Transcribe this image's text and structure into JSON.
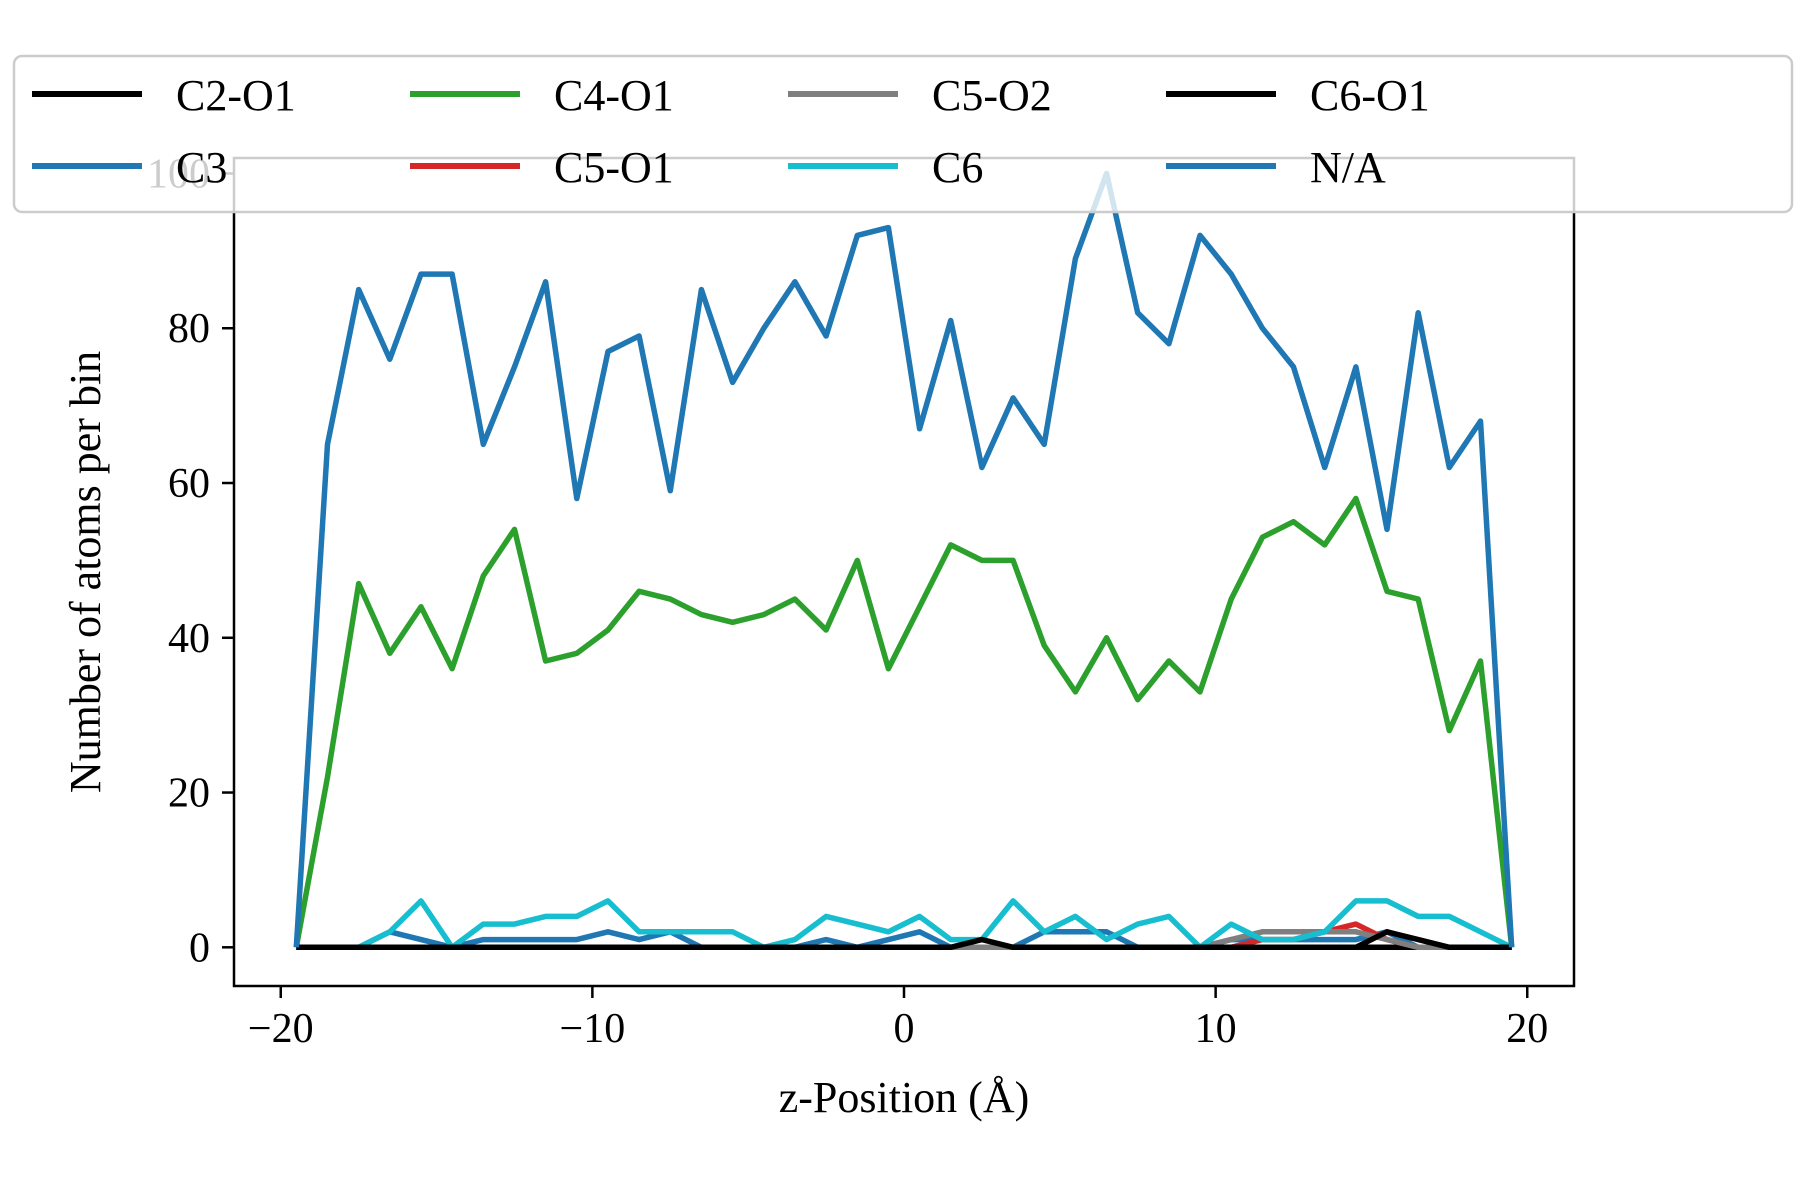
{
  "chart_data": {
    "type": "line",
    "title": "",
    "xlabel": "z-Position (Å)",
    "ylabel": "Number of atoms per bin",
    "xlim": [
      -21.5,
      21.5
    ],
    "ylim": [
      -5,
      102
    ],
    "xticks": [
      -20,
      -10,
      0,
      10,
      20
    ],
    "xtick_labels": [
      "−20",
      "−10",
      "0",
      "10",
      "20"
    ],
    "yticks": [
      0,
      20,
      40,
      60,
      80,
      100
    ],
    "ytick_labels": [
      "0",
      "20",
      "40",
      "60",
      "80",
      "100"
    ],
    "grid": false,
    "legend_position": "top",
    "x": [
      -19.5,
      -18.5,
      -17.5,
      -16.5,
      -15.5,
      -14.5,
      -13.5,
      -12.5,
      -11.5,
      -10.5,
      -9.5,
      -8.5,
      -7.5,
      -6.5,
      -5.5,
      -4.5,
      -3.5,
      -2.5,
      -1.5,
      -0.5,
      0.5,
      1.5,
      2.5,
      3.5,
      4.5,
      5.5,
      6.5,
      7.5,
      8.5,
      9.5,
      10.5,
      11.5,
      12.5,
      13.5,
      14.5,
      15.5,
      16.5,
      17.5,
      18.5,
      19.5
    ],
    "series": [
      {
        "name": "C2-O1",
        "color": "#000000",
        "values": [
          0,
          0,
          0,
          0,
          0,
          0,
          0,
          0,
          0,
          0,
          0,
          0,
          0,
          0,
          0,
          0,
          0,
          0,
          0,
          0,
          0,
          0,
          0,
          0,
          0,
          0,
          0,
          0,
          0,
          0,
          0,
          0,
          0,
          0,
          0,
          0,
          0,
          0,
          0,
          0
        ]
      },
      {
        "name": "C3",
        "color": "#1f77b4",
        "values": [
          0,
          0,
          0,
          2,
          1,
          0,
          1,
          1,
          1,
          1,
          2,
          1,
          2,
          0,
          0,
          0,
          0,
          1,
          0,
          1,
          2,
          0,
          0,
          0,
          2,
          2,
          2,
          0,
          0,
          0,
          1,
          1,
          1,
          1,
          1,
          2,
          0,
          0,
          0,
          0
        ]
      },
      {
        "name": "C4-O1",
        "color": "#2ca02c",
        "values": [
          0,
          22,
          47,
          38,
          44,
          36,
          48,
          54,
          37,
          38,
          41,
          46,
          45,
          43,
          42,
          43,
          45,
          41,
          50,
          36,
          44,
          52,
          50,
          50,
          39,
          33,
          40,
          32,
          37,
          33,
          45,
          53,
          55,
          52,
          58,
          46,
          45,
          28,
          37,
          0
        ]
      },
      {
        "name": "C5-O1",
        "color": "#d62728",
        "values": [
          0,
          0,
          0,
          0,
          0,
          0,
          0,
          0,
          0,
          0,
          0,
          0,
          0,
          0,
          0,
          0,
          0,
          0,
          0,
          0,
          0,
          0,
          0,
          0,
          0,
          0,
          0,
          0,
          0,
          0,
          0,
          1,
          1,
          2,
          3,
          1,
          0,
          0,
          0,
          0
        ]
      },
      {
        "name": "C5-O2",
        "color": "#7f7f7f",
        "values": [
          0,
          0,
          0,
          0,
          0,
          0,
          0,
          0,
          0,
          0,
          0,
          0,
          0,
          0,
          0,
          0,
          0,
          0,
          0,
          0,
          0,
          0,
          0,
          0,
          0,
          0,
          0,
          0,
          0,
          0,
          1,
          2,
          2,
          2,
          2,
          1,
          0,
          0,
          0,
          0
        ]
      },
      {
        "name": "C6",
        "color": "#17becf",
        "values": [
          0,
          0,
          0,
          2,
          6,
          0,
          3,
          3,
          4,
          4,
          6,
          2,
          2,
          2,
          2,
          0,
          1,
          4,
          3,
          2,
          4,
          1,
          1,
          6,
          2,
          4,
          1,
          3,
          4,
          0,
          3,
          1,
          1,
          2,
          6,
          6,
          4,
          4,
          2,
          0
        ]
      },
      {
        "name": "C6-O1",
        "color": "#000000",
        "values": [
          0,
          0,
          0,
          0,
          0,
          0,
          0,
          0,
          0,
          0,
          0,
          0,
          0,
          0,
          0,
          0,
          0,
          0,
          0,
          0,
          0,
          0,
          1,
          0,
          0,
          0,
          0,
          0,
          0,
          0,
          0,
          0,
          0,
          0,
          0,
          2,
          1,
          0,
          0,
          0
        ]
      },
      {
        "name": "N/A",
        "color": "#1f77b4",
        "values": [
          0,
          65,
          85,
          76,
          87,
          87,
          65,
          75,
          86,
          58,
          77,
          79,
          59,
          85,
          73,
          80,
          86,
          79,
          92,
          93,
          67,
          81,
          62,
          71,
          65,
          89,
          100,
          82,
          78,
          92,
          87,
          80,
          75,
          62,
          75,
          54,
          82,
          62,
          68,
          0
        ]
      }
    ]
  }
}
